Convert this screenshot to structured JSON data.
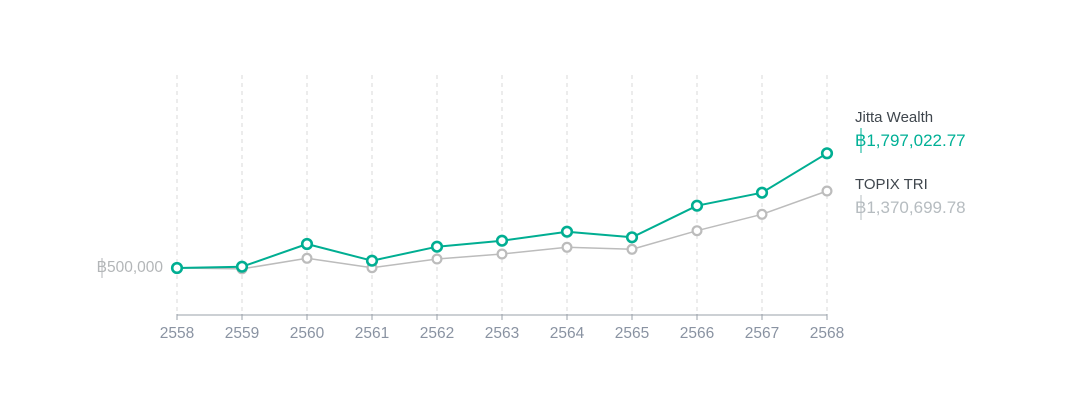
{
  "figure": {
    "background": "#ffffff",
    "start_label": "฿500,000",
    "legend": [
      {
        "name": "Jitta Wealth",
        "value": "฿1,797,022.77"
      },
      {
        "name": "TOPIX TRI",
        "value": "฿1,370,699.78"
      }
    ]
  },
  "colors": {
    "jitta_line": "#00ae92",
    "topix_line": "#bcbcbc",
    "jitta_value_text": "#00b096",
    "topix_value_text": "#b6bcc0",
    "legend_name_text": "#3f464d",
    "start_label_text": "#b3b6b8",
    "axis_line": "#9aa1aa",
    "axis_label_text": "#8a93a2",
    "gridline": "#d9d9d9",
    "marker_fill": "#ffffff"
  },
  "chart_data": {
    "type": "line",
    "title": "",
    "xlabel": "",
    "ylabel": "",
    "categories": [
      "2558",
      "2559",
      "2560",
      "2561",
      "2562",
      "2563",
      "2564",
      "2565",
      "2566",
      "2567",
      "2568"
    ],
    "series": [
      {
        "name": "Jitta Wealth",
        "color": "#00ae92",
        "values": [
          500000,
          515000,
          771000,
          583000,
          741000,
          809000,
          911000,
          847000,
          1205000,
          1352000,
          1797022.77
        ]
      },
      {
        "name": "TOPIX TRI",
        "color": "#bcbcbc",
        "values": [
          500000,
          490000,
          610000,
          503000,
          602000,
          658000,
          734000,
          711000,
          922000,
          1107000,
          1370699.78
        ]
      }
    ],
    "baseline_value": 500000,
    "baseline_label": "฿500,000",
    "end_labels": [
      "฿1,797,022.77",
      "฿1,370,699.78"
    ],
    "grid": "vertical-dashed",
    "legend_position": "right",
    "x_axis": "bottom",
    "y_axis_visible": false
  }
}
